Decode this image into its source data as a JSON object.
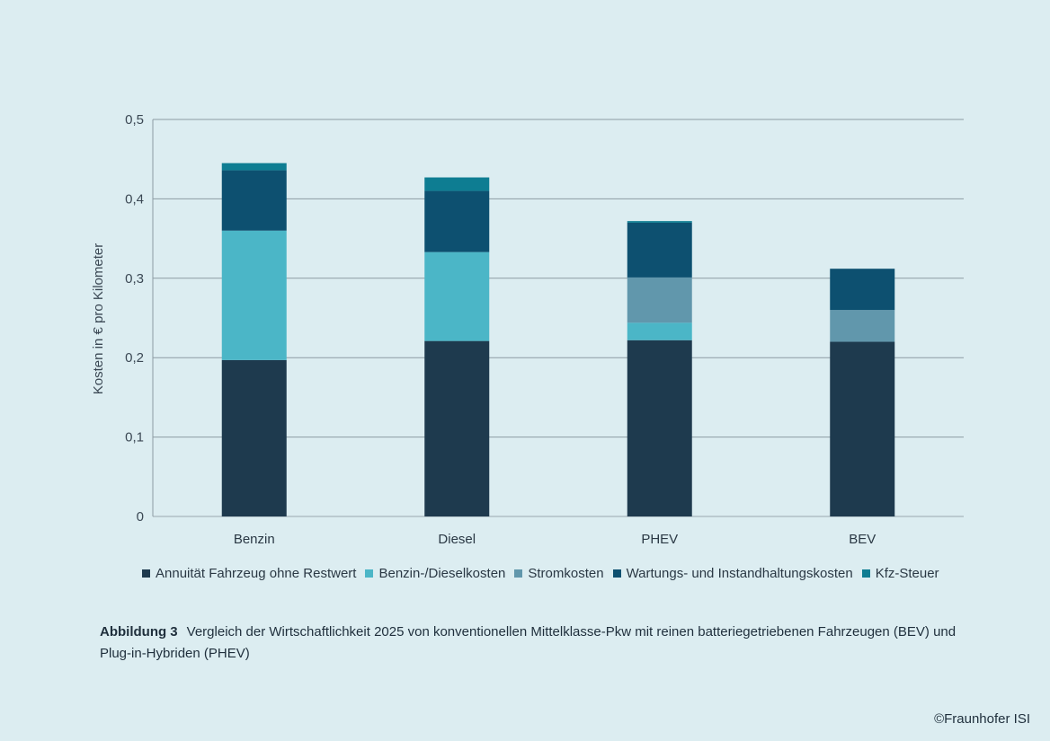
{
  "chart_data": {
    "type": "bar",
    "stacked": true,
    "categories": [
      "Benzin",
      "Diesel",
      "PHEV",
      "BEV"
    ],
    "ylabel": "Kosten in € pro Kilometer",
    "ylim": [
      0,
      0.5
    ],
    "yticks": [
      "0",
      "0,1",
      "0,2",
      "0,3",
      "0,4",
      "0,5"
    ],
    "grid": true,
    "legend_position": "bottom",
    "series": [
      {
        "name": "Annuität Fahrzeug ohne Restwert",
        "color": "#1e3a4e",
        "values": [
          0.197,
          0.221,
          0.222,
          0.22
        ]
      },
      {
        "name": "Benzin-/Dieselkosten",
        "color": "#4bb6c7",
        "values": [
          0.163,
          0.112,
          0.022,
          0
        ]
      },
      {
        "name": "Stromkosten",
        "color": "#6197ac",
        "values": [
          0,
          0,
          0.057,
          0.04
        ]
      },
      {
        "name": "Wartungs- und Instandhaltungskosten",
        "color": "#0d5070",
        "values": [
          0.076,
          0.077,
          0.069,
          0.052
        ]
      },
      {
        "name": "Kfz-Steuer",
        "color": "#0e7d92",
        "values": [
          0.009,
          0.017,
          0.002,
          0
        ]
      }
    ]
  },
  "caption": {
    "label": "Abbildung 3",
    "text": "Vergleich der Wirtschaftlichkeit 2025 von konventionellen Mittelklasse-Pkw mit reinen batteriegetriebenen Fahrzeugen (BEV) und Plug-in-Hybriden (PHEV)"
  },
  "credit": "©Fraunhofer ISI"
}
